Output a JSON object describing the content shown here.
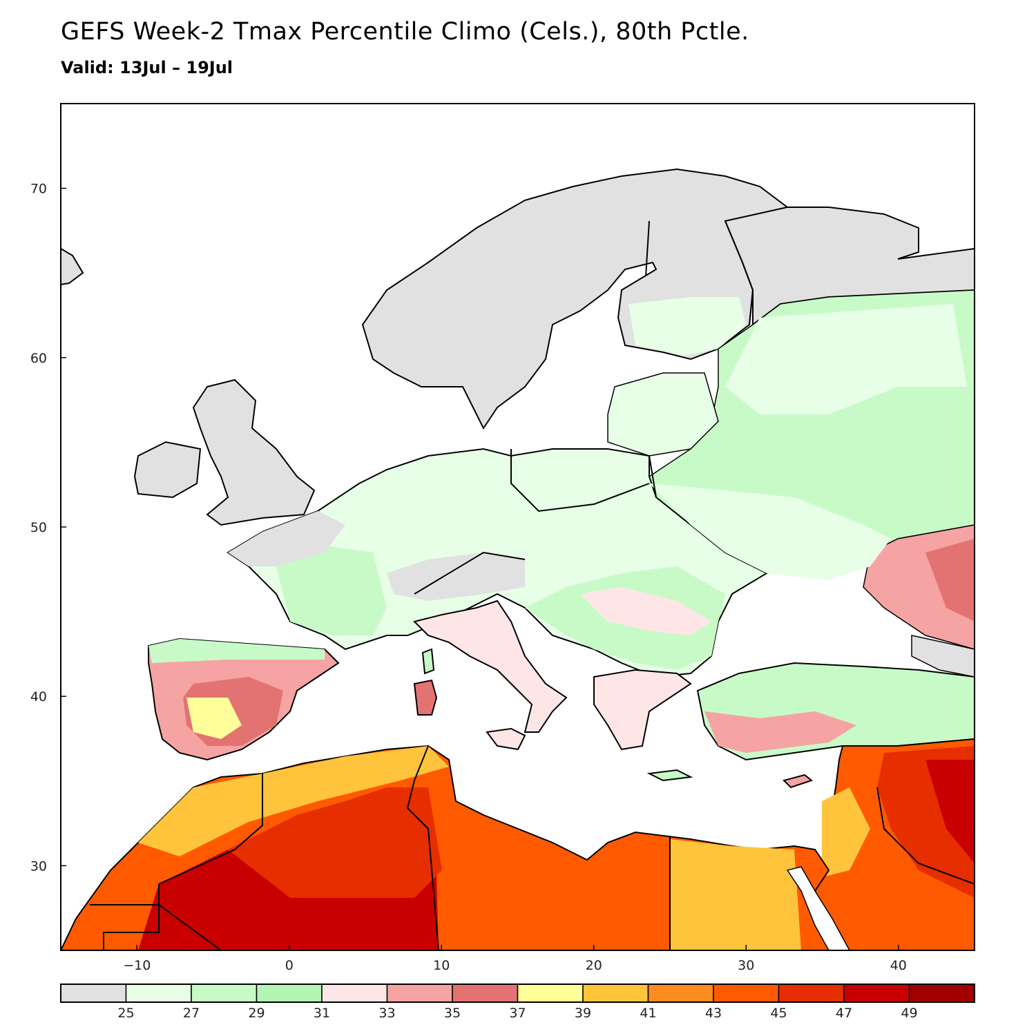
{
  "header": {
    "title": "GEFS Week-2 Tmax Percentile Climo (Cels.), 80th Pctle.",
    "subtitle": "Valid: 13Jul – 19Jul"
  },
  "colors": {
    "background": "#ffffff",
    "coast_line": "#000000",
    "bins": [
      "#e1e1e1",
      "#e6ffe6",
      "#c8fac8",
      "#b4f5b4",
      "#ffe6e6",
      "#f5a3a3",
      "#e37373",
      "#ffff99",
      "#ffc43c",
      "#ff8c1e",
      "#ff5a00",
      "#e62e00",
      "#c80000",
      "#a00000"
    ]
  },
  "map": {
    "lon_ticks": [
      -10,
      0,
      10,
      20,
      30,
      40
    ],
    "lat_ticks": [
      30,
      40,
      50,
      60,
      70
    ],
    "lon_labels": [
      "−10",
      "0",
      "10",
      "20",
      "30",
      "40"
    ],
    "lat_labels": [
      "30",
      "40",
      "50",
      "60",
      "70"
    ],
    "lon_range": [
      -15,
      45
    ],
    "lat_range": [
      25,
      75
    ]
  },
  "colorbar": {
    "boundaries": [
      "25",
      "27",
      "29",
      "31",
      "33",
      "35",
      "37",
      "39",
      "41",
      "43",
      "45",
      "47",
      "49"
    ]
  }
}
